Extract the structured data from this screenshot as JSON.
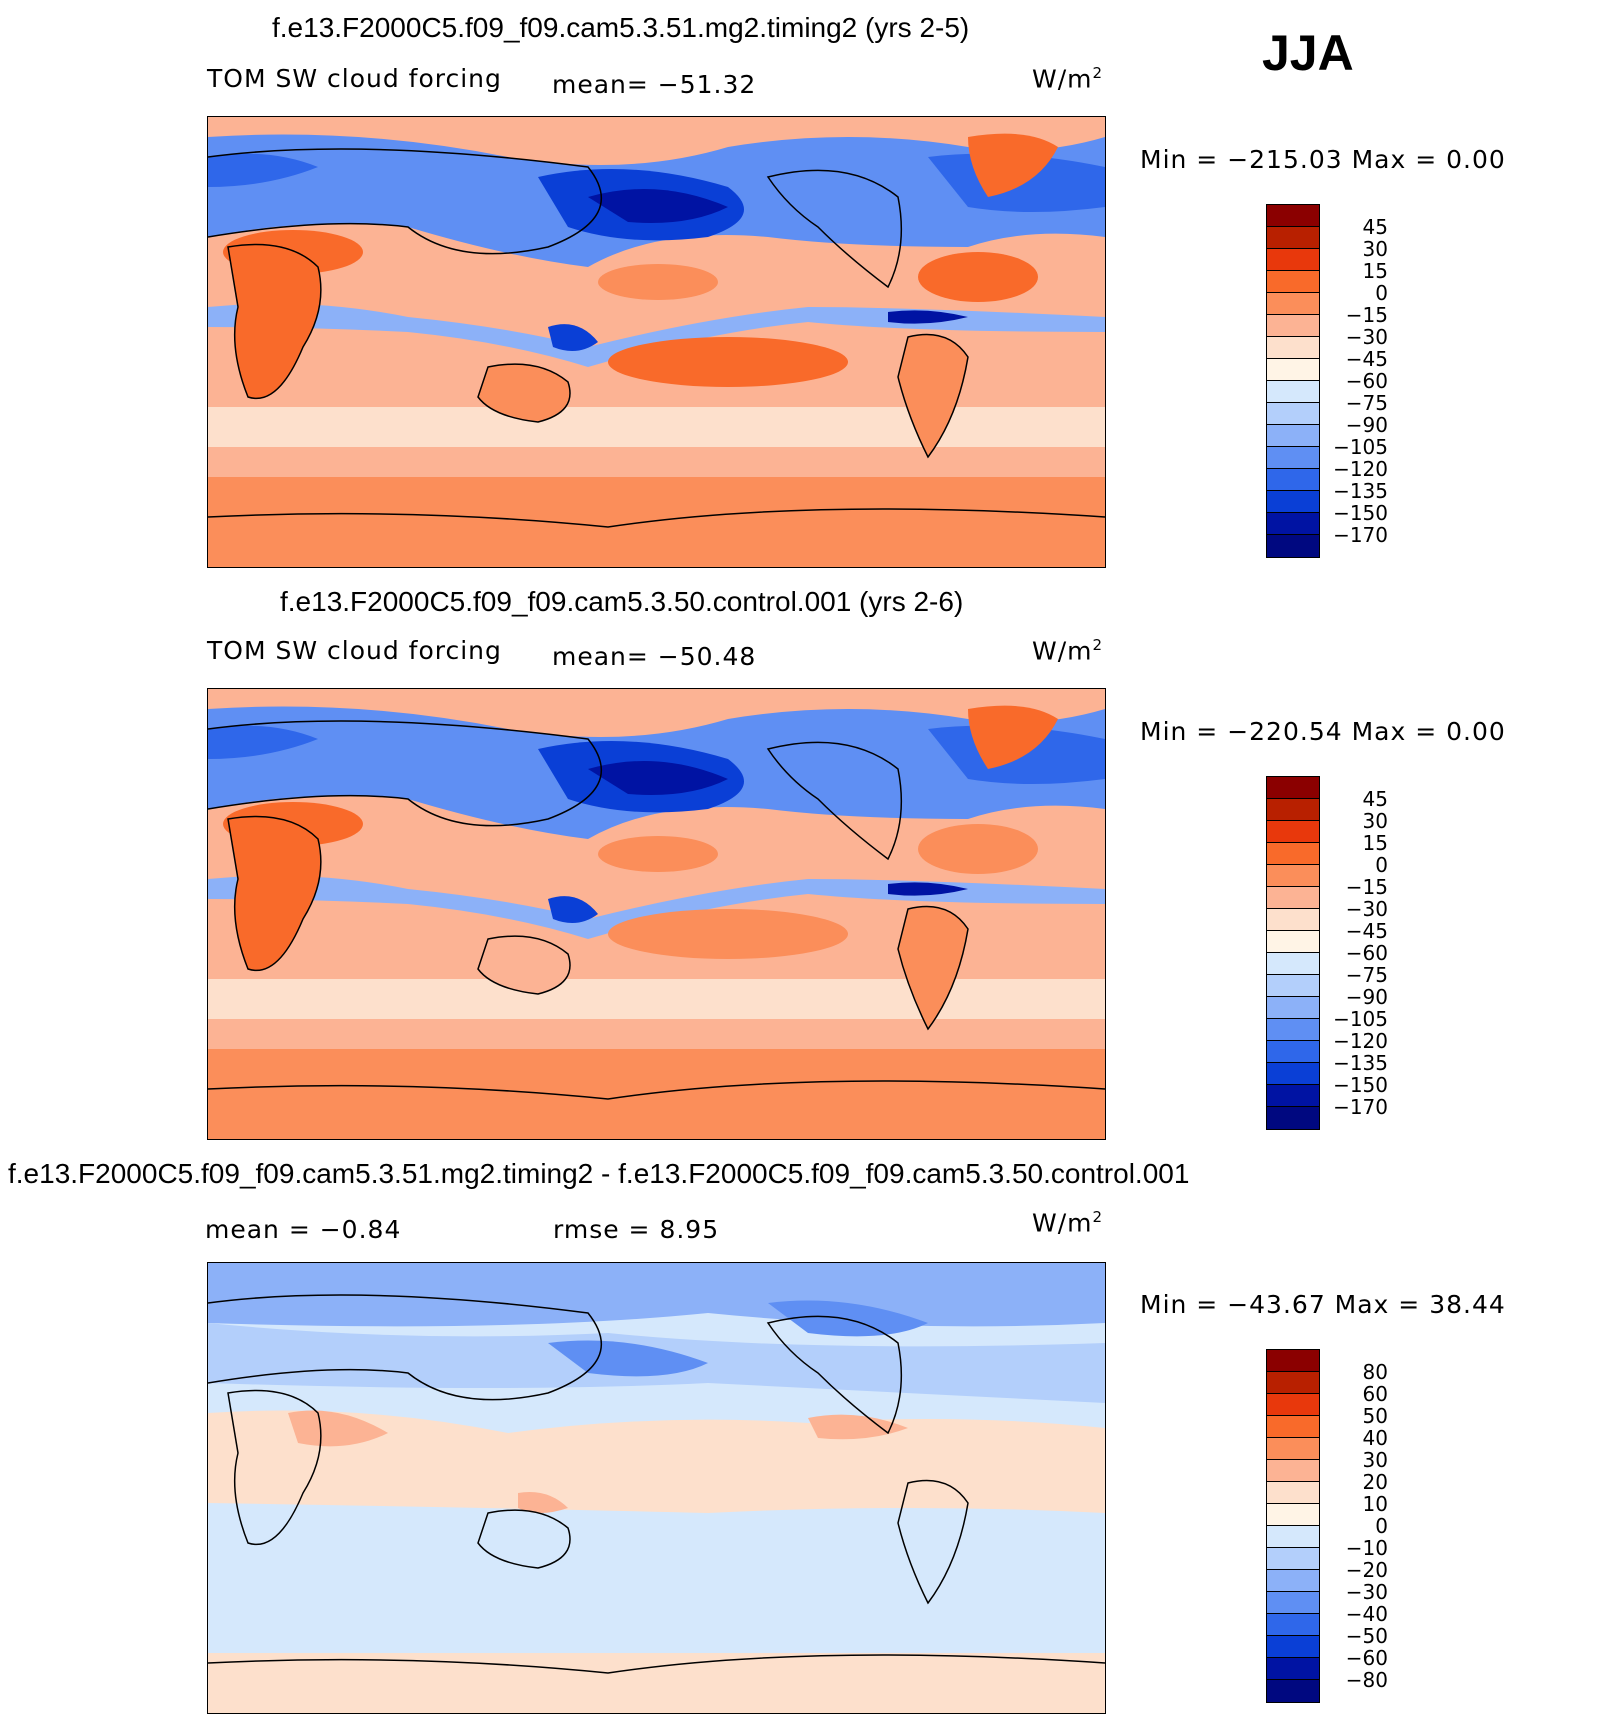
{
  "season": "JJA",
  "panels": [
    {
      "title": "f.e13.F2000C5.f09_f09.cam5.3.51.mg2.timing2 (yrs 2-5)",
      "variable": "TOM SW cloud forcing",
      "stat": "mean=  −51.32",
      "units": "W/m",
      "units_sup": "2",
      "minmax": "Min  =  −215.03  Max  =      0.00",
      "colorbar_labels": [
        "45",
        "30",
        "15",
        "0",
        "−15",
        "−30",
        "−45",
        "−60",
        "−75",
        "−90",
        "−105",
        "−120",
        "−135",
        "−150",
        "−170"
      ]
    },
    {
      "title": "f.e13.F2000C5.f09_f09.cam5.3.50.control.001 (yrs 2-6)",
      "variable": "TOM SW cloud forcing",
      "stat": "mean=  −50.48",
      "units": "W/m",
      "units_sup": "2",
      "minmax": "Min  =  −220.54  Max  =      0.00",
      "colorbar_labels": [
        "45",
        "30",
        "15",
        "0",
        "−15",
        "−30",
        "−45",
        "−60",
        "−75",
        "−90",
        "−105",
        "−120",
        "−135",
        "−150",
        "−170"
      ]
    },
    {
      "title": "f.e13.F2000C5.f09_f09.cam5.3.51.mg2.timing2 - f.e13.F2000C5.f09_f09.cam5.3.50.control.001",
      "stat_mean": "mean  =    −0.84",
      "stat_rmse": "rmse  =      8.95",
      "units": "W/m",
      "units_sup": "2",
      "minmax": "Min  =  −43.67  Max  =    38.44",
      "colorbar_labels": [
        "80",
        "60",
        "50",
        "40",
        "30",
        "20",
        "10",
        "0",
        "−10",
        "−20",
        "−30",
        "−40",
        "−50",
        "−60",
        "−80"
      ]
    }
  ],
  "colorbar_colors": [
    "#8b0000",
    "#b82000",
    "#e8380c",
    "#f96a2a",
    "#fb8e5a",
    "#fcb394",
    "#fde0cc",
    "#fff4e6",
    "#d5e8fc",
    "#b3cffb",
    "#8cb1f8",
    "#5f8ff3",
    "#2f67ea",
    "#0a3fd6",
    "#0013a3",
    "#000880"
  ]
}
